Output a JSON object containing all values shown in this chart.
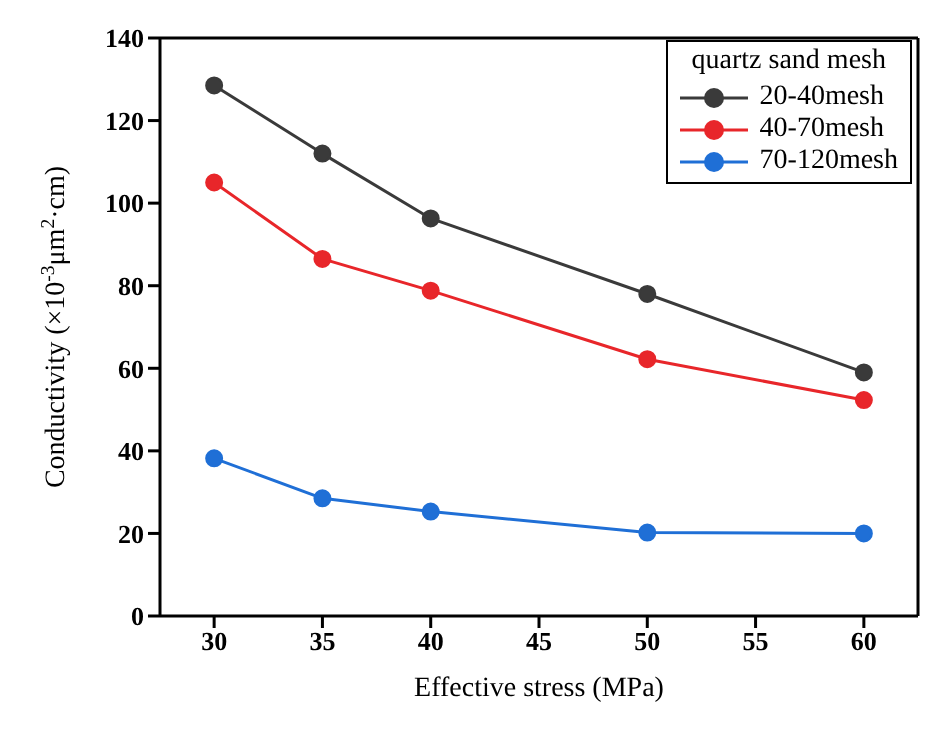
{
  "chart_data": {
    "type": "line",
    "xlabel": "Effective stress (MPa)",
    "ylabel": "Conductivity (×10$^{-3}$μm$^{2}$·cm)",
    "legend_title": "quartz sand mesh",
    "x": [
      30,
      35,
      40,
      50,
      60
    ],
    "series": [
      {
        "name": "20-40mesh",
        "color": "#3a3a3a",
        "values": [
          128.5,
          112,
          96.3,
          78,
          59
        ]
      },
      {
        "name": "40-70mesh",
        "color": "#e8262a",
        "values": [
          105,
          86.5,
          78.8,
          62.2,
          52.3
        ]
      },
      {
        "name": "70-120mesh",
        "color": "#1f6fd6",
        "values": [
          38.2,
          28.5,
          25.3,
          20.2,
          20
        ]
      }
    ],
    "xlim": [
      27.5,
      62.5
    ],
    "xticks": [
      30,
      35,
      40,
      45,
      50,
      55,
      60
    ],
    "ylim": [
      0,
      140
    ],
    "yticks": [
      0,
      20,
      40,
      60,
      80,
      100,
      120,
      140
    ],
    "grid": false,
    "legend": "top right",
    "marker": "circle",
    "line_style": "solid"
  }
}
